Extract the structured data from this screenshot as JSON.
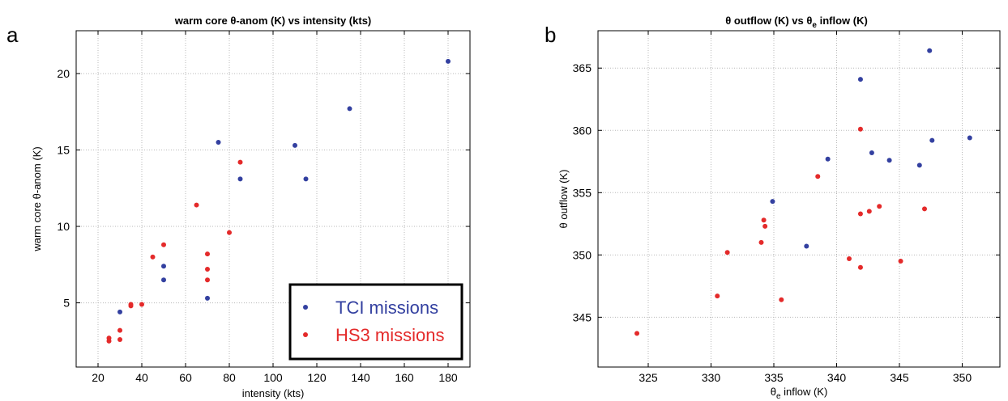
{
  "panels": {
    "a": {
      "letter": "a"
    },
    "b": {
      "letter": "b"
    }
  },
  "legend": {
    "tci_label": "TCI missions",
    "hs3_label": "HS3 missions"
  },
  "colors": {
    "tci": "#3340a0",
    "hs3": "#e42a2a"
  },
  "chart_data": [
    {
      "type": "scatter",
      "title": "warm core θ-anom (K) vs intensity (kts)",
      "xlabel": "intensity (kts)",
      "ylabel": "warm core θ-anom (K)",
      "xlim": [
        10,
        190
      ],
      "ylim": [
        0.8,
        22.8
      ],
      "xticks": [
        20,
        40,
        60,
        80,
        100,
        120,
        140,
        160,
        180
      ],
      "yticks": [
        5,
        10,
        15,
        20
      ],
      "grid": true,
      "legend_position": "bottom-right",
      "series": [
        {
          "name": "TCI missions",
          "points": [
            [
              30,
              4.4
            ],
            [
              50,
              7.4
            ],
            [
              50,
              6.5
            ],
            [
              70,
              5.3
            ],
            [
              75,
              15.5
            ],
            [
              85,
              13.1
            ],
            [
              110,
              15.3
            ],
            [
              115,
              13.1
            ],
            [
              135,
              17.7
            ],
            [
              180,
              20.8
            ]
          ]
        },
        {
          "name": "HS3 missions",
          "points": [
            [
              25,
              2.5
            ],
            [
              25,
              2.7
            ],
            [
              30,
              2.6
            ],
            [
              30,
              3.2
            ],
            [
              35,
              4.8
            ],
            [
              35,
              4.9
            ],
            [
              40,
              4.9
            ],
            [
              45,
              8.0
            ],
            [
              50,
              8.8
            ],
            [
              65,
              11.4
            ],
            [
              70,
              8.2
            ],
            [
              70,
              7.2
            ],
            [
              70,
              6.5
            ],
            [
              80,
              9.6
            ],
            [
              85,
              14.2
            ]
          ]
        }
      ]
    },
    {
      "type": "scatter",
      "title": "θ outflow (K) vs θ",
      "title_sub": "e",
      "title_rest": " inflow (K)",
      "xlabel": "θ",
      "xlabel_sub": "e",
      "xlabel_rest": " inflow (K)",
      "ylabel": "θ outflow (K)",
      "xlim": [
        321,
        353
      ],
      "ylim": [
        341,
        368
      ],
      "xticks": [
        325,
        330,
        335,
        340,
        345,
        350
      ],
      "yticks": [
        345,
        350,
        355,
        360,
        365
      ],
      "grid": true,
      "series": [
        {
          "name": "TCI missions",
          "points": [
            [
              334.9,
              354.3
            ],
            [
              337.6,
              350.7
            ],
            [
              339.3,
              357.7
            ],
            [
              341.9,
              364.1
            ],
            [
              342.8,
              358.2
            ],
            [
              344.2,
              357.6
            ],
            [
              346.6,
              357.2
            ],
            [
              347.4,
              366.4
            ],
            [
              347.6,
              359.2
            ],
            [
              350.6,
              359.4
            ]
          ]
        },
        {
          "name": "HS3 missions",
          "points": [
            [
              324.1,
              343.7
            ],
            [
              330.5,
              346.7
            ],
            [
              331.3,
              350.2
            ],
            [
              334.0,
              351.0
            ],
            [
              334.2,
              352.8
            ],
            [
              334.3,
              352.3
            ],
            [
              335.6,
              346.4
            ],
            [
              338.5,
              356.3
            ],
            [
              341.0,
              349.7
            ],
            [
              341.9,
              353.3
            ],
            [
              341.9,
              360.1
            ],
            [
              341.9,
              349.0
            ],
            [
              342.6,
              353.5
            ],
            [
              343.4,
              353.9
            ],
            [
              345.1,
              349.5
            ],
            [
              347.0,
              353.7
            ]
          ]
        }
      ]
    }
  ]
}
